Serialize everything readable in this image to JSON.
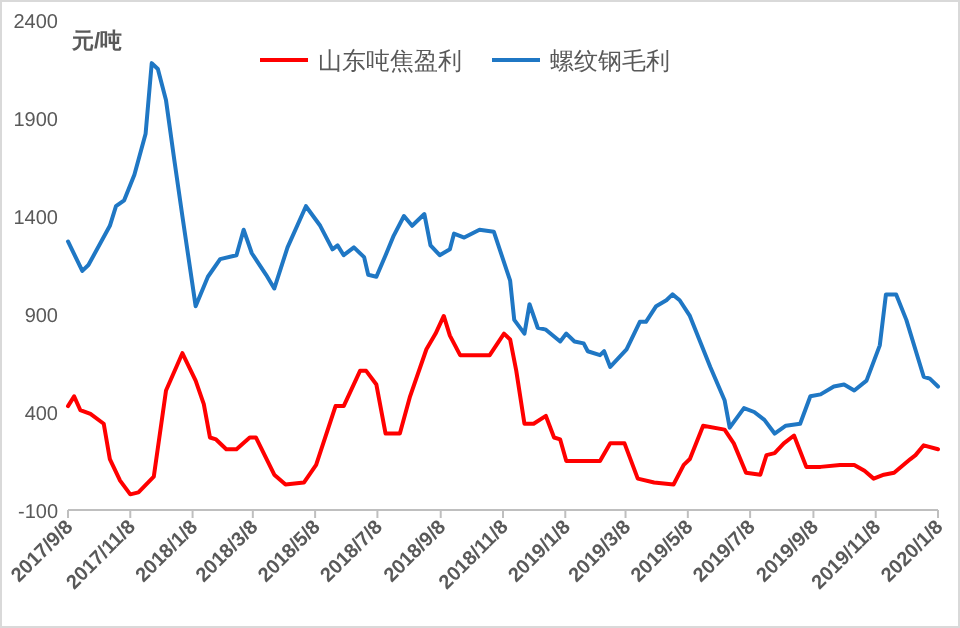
{
  "chart_data": {
    "type": "line",
    "ylabel": "元/吨",
    "ylim": [
      -100,
      2400
    ],
    "yticks": [
      -100,
      400,
      900,
      1400,
      1900,
      2400
    ],
    "xlim": [
      "2017-09-08",
      "2020-01-08"
    ],
    "xticks": [
      {
        "value": "2017-09-08",
        "label": "2017/9/8"
      },
      {
        "value": "2017-11-08",
        "label": "2017/11/8"
      },
      {
        "value": "2018-01-08",
        "label": "2018/1/8"
      },
      {
        "value": "2018-03-08",
        "label": "2018/3/8"
      },
      {
        "value": "2018-05-08",
        "label": "2018/5/8"
      },
      {
        "value": "2018-07-08",
        "label": "2018/7/8"
      },
      {
        "value": "2018-09-08",
        "label": "2018/9/8"
      },
      {
        "value": "2018-11-08",
        "label": "2018/11/8"
      },
      {
        "value": "2019-01-08",
        "label": "2019/1/8"
      },
      {
        "value": "2019-03-08",
        "label": "2019/3/8"
      },
      {
        "value": "2019-05-08",
        "label": "2019/5/8"
      },
      {
        "value": "2019-07-08",
        "label": "2019/7/8"
      },
      {
        "value": "2019-09-08",
        "label": "2019/9/8"
      },
      {
        "value": "2019-11-08",
        "label": "2019/11/8"
      },
      {
        "value": "2020-01-08",
        "label": "2020/1/8"
      }
    ],
    "grid": false,
    "legend": "top",
    "marker": "none",
    "line_style": "solid",
    "series": [
      {
        "name": "山东吨焦盈利",
        "color": "#ff0000",
        "x": [
          "2017-09-08",
          "2017-09-14",
          "2017-09-20",
          "2017-09-30",
          "2017-10-13",
          "2017-10-19",
          "2017-10-29",
          "2017-11-08",
          "2017-11-16",
          "2017-12-01",
          "2017-12-13",
          "2017-12-29",
          "2018-01-11",
          "2018-01-19",
          "2018-01-25",
          "2018-01-31",
          "2018-02-10",
          "2018-02-20",
          "2018-03-05",
          "2018-03-11",
          "2018-03-29",
          "2018-04-09",
          "2018-04-27",
          "2018-05-09",
          "2018-05-28",
          "2018-06-05",
          "2018-06-21",
          "2018-06-27",
          "2018-07-07",
          "2018-07-16",
          "2018-07-30",
          "2018-08-09",
          "2018-08-25",
          "2018-09-03",
          "2018-09-11",
          "2018-09-17",
          "2018-09-27",
          "2018-10-11",
          "2018-10-26",
          "2018-11-09",
          "2018-11-15",
          "2018-11-21",
          "2018-11-29",
          "2018-12-08",
          "2018-12-20",
          "2018-12-28",
          "2019-01-03",
          "2019-01-09",
          "2019-02-11",
          "2019-02-21",
          "2019-03-07",
          "2019-03-20",
          "2019-04-05",
          "2019-04-24",
          "2019-05-04",
          "2019-05-10",
          "2019-05-23",
          "2019-06-13",
          "2019-06-22",
          "2019-07-04",
          "2019-07-18",
          "2019-07-24",
          "2019-08-01",
          "2019-08-10",
          "2019-08-20",
          "2019-09-01",
          "2019-09-15",
          "2019-10-04",
          "2019-10-18",
          "2019-10-28",
          "2019-11-06",
          "2019-11-16",
          "2019-11-26",
          "2019-12-12",
          "2019-12-17",
          "2019-12-25",
          "2020-01-08"
        ],
        "values": [
          430,
          480,
          410,
          390,
          340,
          160,
          50,
          -20,
          -10,
          70,
          510,
          700,
          560,
          440,
          270,
          260,
          210,
          210,
          270,
          270,
          80,
          30,
          40,
          130,
          430,
          430,
          610,
          610,
          540,
          290,
          290,
          480,
          720,
          800,
          890,
          790,
          690,
          690,
          690,
          800,
          770,
          610,
          340,
          340,
          380,
          270,
          260,
          150,
          150,
          240,
          240,
          60,
          40,
          30,
          130,
          160,
          330,
          310,
          240,
          90,
          80,
          180,
          190,
          240,
          280,
          120,
          120,
          130,
          130,
          100,
          60,
          80,
          90,
          160,
          180,
          230,
          210
        ]
      },
      {
        "name": "螺纹钢毛利",
        "color": "#1f77c4",
        "x": [
          "2017-09-08",
          "2017-09-22",
          "2017-09-28",
          "2017-10-19",
          "2017-10-25",
          "2017-11-02",
          "2017-11-12",
          "2017-11-23",
          "2017-11-29",
          "2017-12-05",
          "2017-12-13",
          "2017-12-21",
          "2017-12-29",
          "2018-01-11",
          "2018-01-23",
          "2018-02-04",
          "2018-02-20",
          "2018-02-27",
          "2018-03-07",
          "2018-03-21",
          "2018-03-29",
          "2018-04-11",
          "2018-04-29",
          "2018-05-13",
          "2018-05-25",
          "2018-05-30",
          "2018-06-05",
          "2018-06-15",
          "2018-06-25",
          "2018-06-29",
          "2018-07-07",
          "2018-07-16",
          "2018-07-24",
          "2018-08-03",
          "2018-08-11",
          "2018-08-23",
          "2018-08-29",
          "2018-09-07",
          "2018-09-17",
          "2018-09-21",
          "2018-10-01",
          "2018-10-16",
          "2018-10-30",
          "2018-11-15",
          "2018-11-19",
          "2018-11-29",
          "2018-12-04",
          "2018-12-12",
          "2018-12-20",
          "2019-01-03",
          "2019-01-09",
          "2019-01-17",
          "2019-01-26",
          "2019-01-30",
          "2019-02-11",
          "2019-02-15",
          "2019-02-21",
          "2019-03-09",
          "2019-03-22",
          "2019-03-28",
          "2019-04-07",
          "2019-04-17",
          "2019-04-23",
          "2019-04-30",
          "2019-05-10",
          "2019-05-30",
          "2019-06-13",
          "2019-06-18",
          "2019-07-02",
          "2019-07-12",
          "2019-07-22",
          "2019-08-01",
          "2019-08-12",
          "2019-08-26",
          "2019-09-05",
          "2019-09-15",
          "2019-09-28",
          "2019-10-08",
          "2019-10-18",
          "2019-10-30",
          "2019-11-12",
          "2019-11-18",
          "2019-11-28",
          "2019-12-08",
          "2019-12-25",
          "2019-12-31",
          "2020-01-08"
        ],
        "values": [
          1270,
          1120,
          1150,
          1350,
          1450,
          1480,
          1610,
          1820,
          2180,
          2150,
          1990,
          1690,
          1400,
          940,
          1090,
          1180,
          1200,
          1330,
          1210,
          1100,
          1030,
          1240,
          1450,
          1350,
          1230,
          1250,
          1200,
          1240,
          1190,
          1100,
          1090,
          1200,
          1300,
          1400,
          1350,
          1410,
          1250,
          1200,
          1230,
          1310,
          1290,
          1330,
          1320,
          1070,
          870,
          800,
          950,
          830,
          820,
          760,
          800,
          760,
          750,
          710,
          690,
          710,
          630,
          720,
          860,
          860,
          940,
          970,
          1000,
          970,
          890,
          630,
          460,
          320,
          420,
          400,
          360,
          290,
          330,
          340,
          480,
          490,
          530,
          540,
          510,
          560,
          740,
          1000,
          1000,
          870,
          580,
          570,
          530
        ]
      }
    ]
  }
}
